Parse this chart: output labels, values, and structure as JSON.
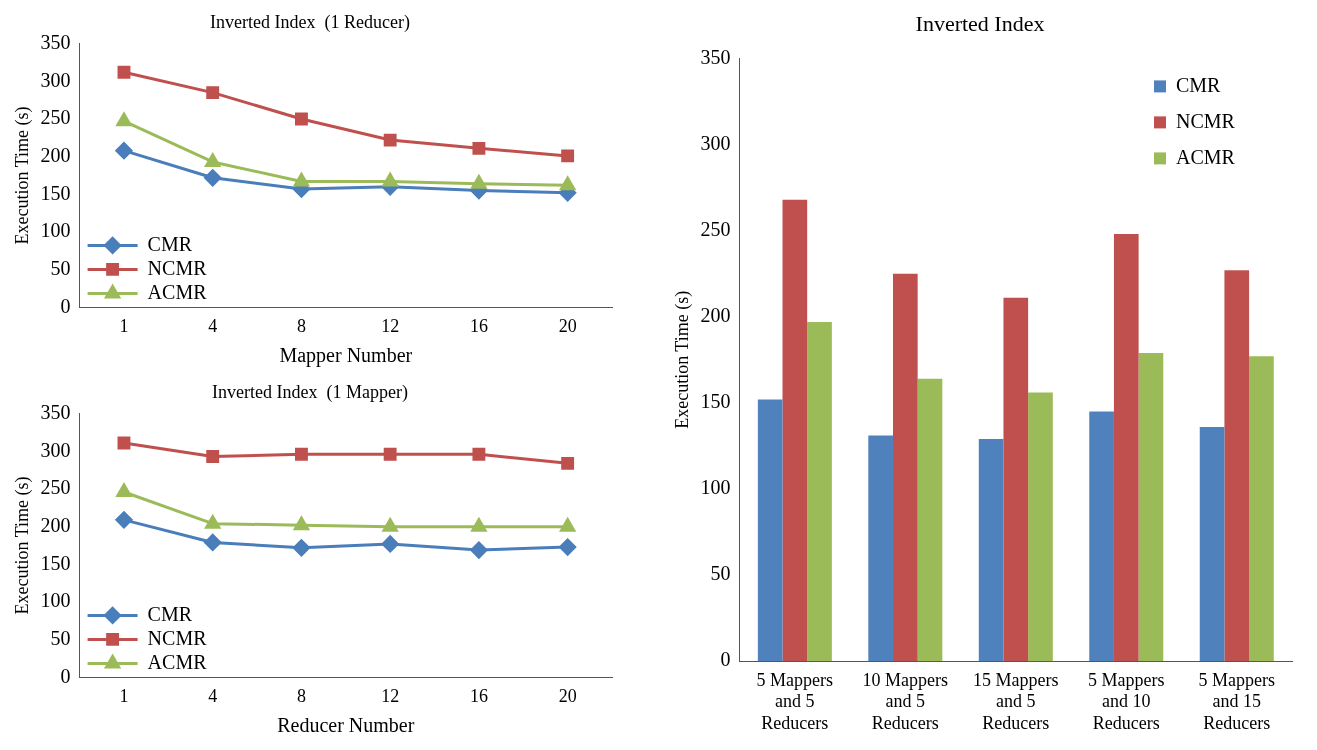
{
  "chart_data": [
    {
      "type": "line",
      "title": "Inverted Index  (1 Reducer)",
      "xlabel": "Mapper Number",
      "ylabel": "Execution Time (s)",
      "categories": [
        "1",
        "4",
        "8",
        "12",
        "16",
        "20"
      ],
      "ylim": [
        0,
        350
      ],
      "yticks": [
        0,
        50,
        100,
        150,
        200,
        250,
        300,
        350
      ],
      "grid": false,
      "legend": "bottom left",
      "line_style": "solid",
      "series": [
        {
          "name": "CMR",
          "color": "#4a7ebb",
          "marker": "diamond",
          "values": [
            208,
            172,
            157,
            160,
            155,
            152
          ]
        },
        {
          "name": "NCMR",
          "color": "#c0504d",
          "marker": "square",
          "values": [
            312,
            285,
            250,
            222,
            211,
            201
          ]
        },
        {
          "name": "ACMR",
          "color": "#9bbb59",
          "marker": "triangle",
          "values": [
            247,
            193,
            167,
            167,
            164,
            162
          ]
        }
      ]
    },
    {
      "type": "line",
      "title": "Inverted Index  (1 Mapper)",
      "xlabel": "Reducer Number",
      "ylabel": "Execution Time (s)",
      "categories": [
        "1",
        "4",
        "8",
        "12",
        "16",
        "20"
      ],
      "ylim": [
        0,
        350
      ],
      "yticks": [
        0,
        50,
        100,
        150,
        200,
        250,
        300,
        350
      ],
      "grid": false,
      "legend": "bottom left",
      "line_style": "solid",
      "series": [
        {
          "name": "CMR",
          "color": "#4a7ebb",
          "marker": "diamond",
          "values": [
            209,
            179,
            172,
            177,
            169,
            173
          ]
        },
        {
          "name": "NCMR",
          "color": "#c0504d",
          "marker": "square",
          "values": [
            311,
            293,
            296,
            296,
            296,
            284
          ]
        },
        {
          "name": "ACMR",
          "color": "#9bbb59",
          "marker": "triangle",
          "values": [
            246,
            204,
            202,
            200,
            200,
            200
          ]
        }
      ]
    },
    {
      "type": "bar",
      "title": "Inverted Index",
      "ylabel": "Execution Time (s)",
      "categories": [
        "5 Mappers and 5 Reducers",
        "10 Mappers and 5 Reducers",
        "15 Mappers and 5 Reducers",
        "5 Mappers and 10 Reducers",
        "5 Mappers and 15 Reducers"
      ],
      "ylim": [
        0,
        350
      ],
      "yticks": [
        0,
        50,
        100,
        150,
        200,
        250,
        300,
        350
      ],
      "grid": false,
      "legend": "top right",
      "series": [
        {
          "name": "CMR",
          "color": "#4f81bd",
          "values": [
            152,
            131,
            129,
            145,
            136
          ]
        },
        {
          "name": "NCMR",
          "color": "#c0504d",
          "values": [
            268,
            225,
            211,
            248,
            227
          ]
        },
        {
          "name": "ACMR",
          "color": "#9bbb59",
          "values": [
            197,
            164,
            156,
            179,
            177
          ]
        }
      ]
    }
  ]
}
